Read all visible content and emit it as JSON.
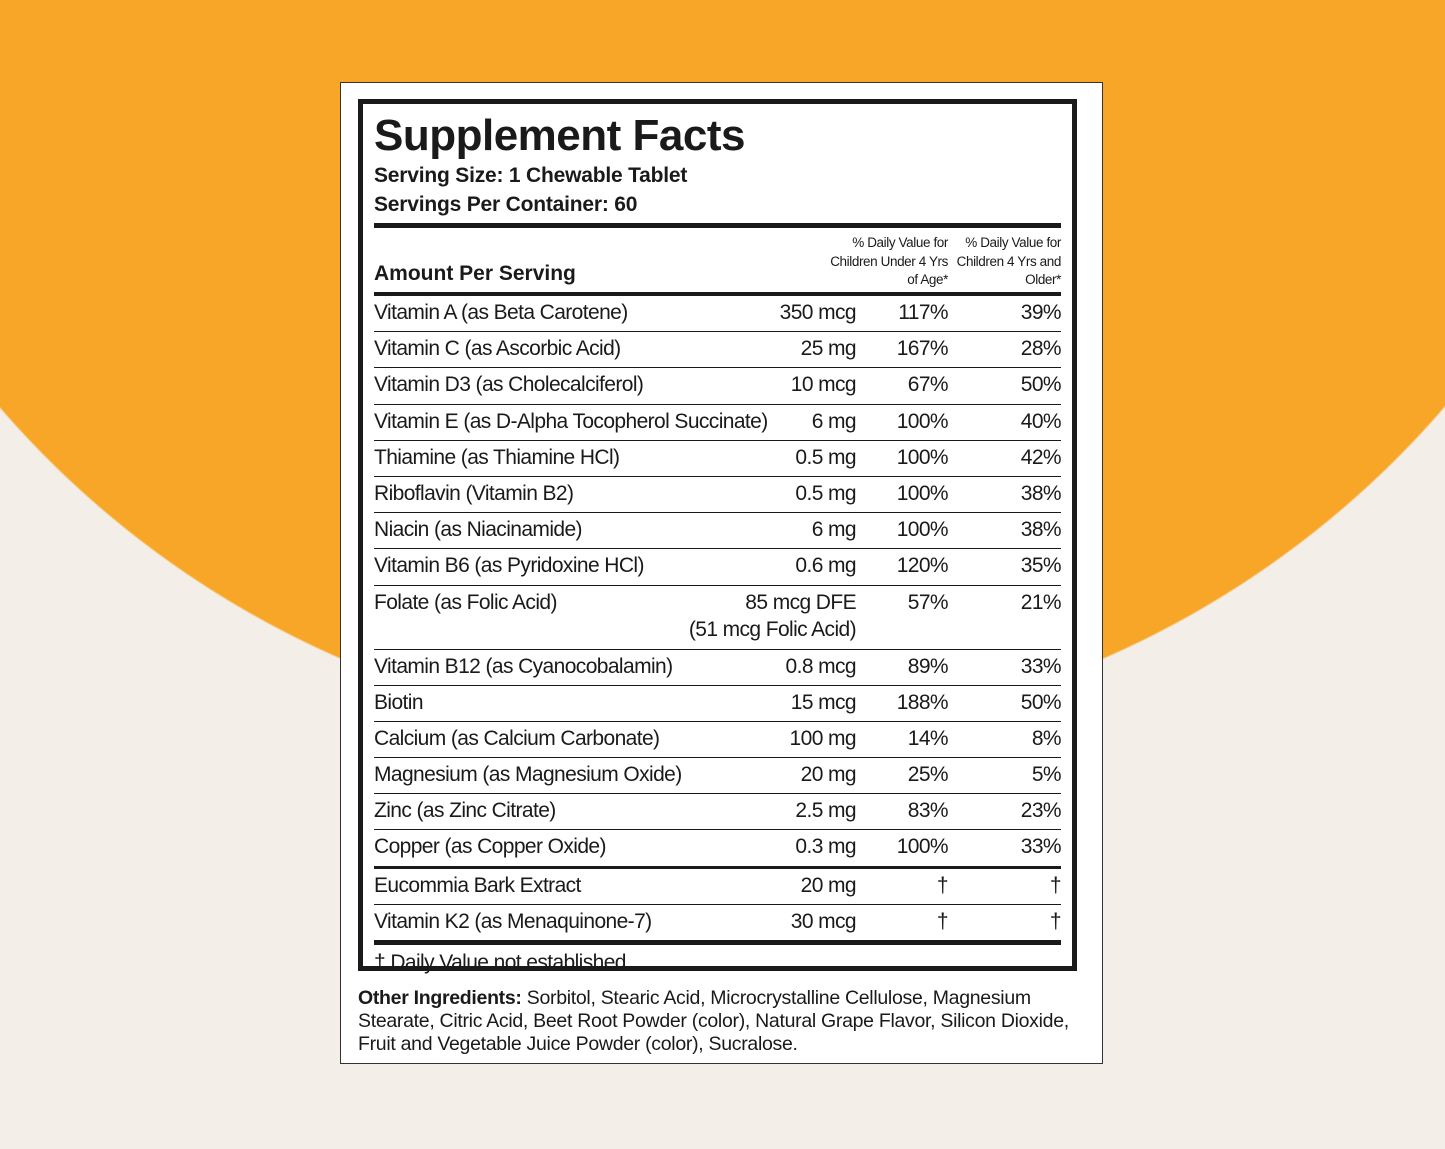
{
  "colors": {
    "orange": "#f8a628",
    "cream": "#f3efe8",
    "ink": "#1a1a1a"
  },
  "label": {
    "title": "Supplement Facts",
    "serving_size": "Serving Size: 1 Chewable Tablet",
    "servings_per_container": "Servings Per Container: 60",
    "amount_per_serving": "Amount Per Serving",
    "dv_header_under4": "% Daily Value for Children Under 4 Yrs of Age*",
    "dv_header_4plus": "% Daily Value for Children 4 Yrs and Older*",
    "rows": [
      {
        "name": "Vitamin A (as Beta Carotene)",
        "amount": "350 mcg",
        "dv_under4": "117%",
        "dv_4plus": "39%"
      },
      {
        "name": "Vitamin C (as Ascorbic Acid)",
        "amount": "25 mg",
        "dv_under4": "167%",
        "dv_4plus": "28%"
      },
      {
        "name": "Vitamin D3 (as Cholecalciferol)",
        "amount": "10 mcg",
        "dv_under4": "67%",
        "dv_4plus": "50%"
      },
      {
        "name": "Vitamin E (as D-Alpha Tocopherol Succinate)",
        "amount": "6 mg",
        "dv_under4": "100%",
        "dv_4plus": "40%"
      },
      {
        "name": "Thiamine (as Thiamine HCl)",
        "amount": "0.5 mg",
        "dv_under4": "100%",
        "dv_4plus": "42%"
      },
      {
        "name": "Riboflavin (Vitamin B2)",
        "amount": "0.5 mg",
        "dv_under4": "100%",
        "dv_4plus": "38%"
      },
      {
        "name": "Niacin (as Niacinamide)",
        "amount": "6 mg",
        "dv_under4": "100%",
        "dv_4plus": "38%"
      },
      {
        "name": "Vitamin B6 (as Pyridoxine HCl)",
        "amount": "0.6 mg",
        "dv_under4": "120%",
        "dv_4plus": "35%"
      },
      {
        "name": "Folate (as Folic Acid)",
        "amount": "85 mcg DFE",
        "amount_note": "(51 mcg Folic Acid)",
        "dv_under4": "57%",
        "dv_4plus": "21%"
      },
      {
        "name": "Vitamin B12 (as Cyanocobalamin)",
        "amount": "0.8 mcg",
        "dv_under4": "89%",
        "dv_4plus": "33%"
      },
      {
        "name": "Biotin",
        "amount": "15 mcg",
        "dv_under4": "188%",
        "dv_4plus": "50%"
      },
      {
        "name": "Calcium (as Calcium Carbonate)",
        "amount": "100 mg",
        "dv_under4": "14%",
        "dv_4plus": "8%"
      },
      {
        "name": "Magnesium (as Magnesium Oxide)",
        "amount": "20 mg",
        "dv_under4": "25%",
        "dv_4plus": "5%"
      },
      {
        "name": "Zinc (as Zinc Citrate)",
        "amount": "2.5 mg",
        "dv_under4": "83%",
        "dv_4plus": "23%"
      },
      {
        "name": "Copper (as Copper Oxide)",
        "amount": "0.3 mg",
        "dv_under4": "100%",
        "dv_4plus": "33%"
      },
      {
        "name": "Eucommia Bark Extract",
        "amount": "20 mg",
        "dv_under4": "†",
        "dv_4plus": "†"
      },
      {
        "name": "Vitamin K2 (as Menaquinone-7)",
        "amount": "30 mcg",
        "dv_under4": "†",
        "dv_4plus": "†"
      }
    ],
    "footnote": "† Daily Value not established.",
    "other_ingredients_label": "Other Ingredients:",
    "other_ingredients": "Sorbitol, Stearic Acid, Microcrystalline Cellulose, Magnesium Stearate, Citric Acid, Beet Root Powder (color), Natural Grape Flavor, Silicon Dioxide, Fruit and Vegetable Juice Powder (color), Sucralose."
  }
}
